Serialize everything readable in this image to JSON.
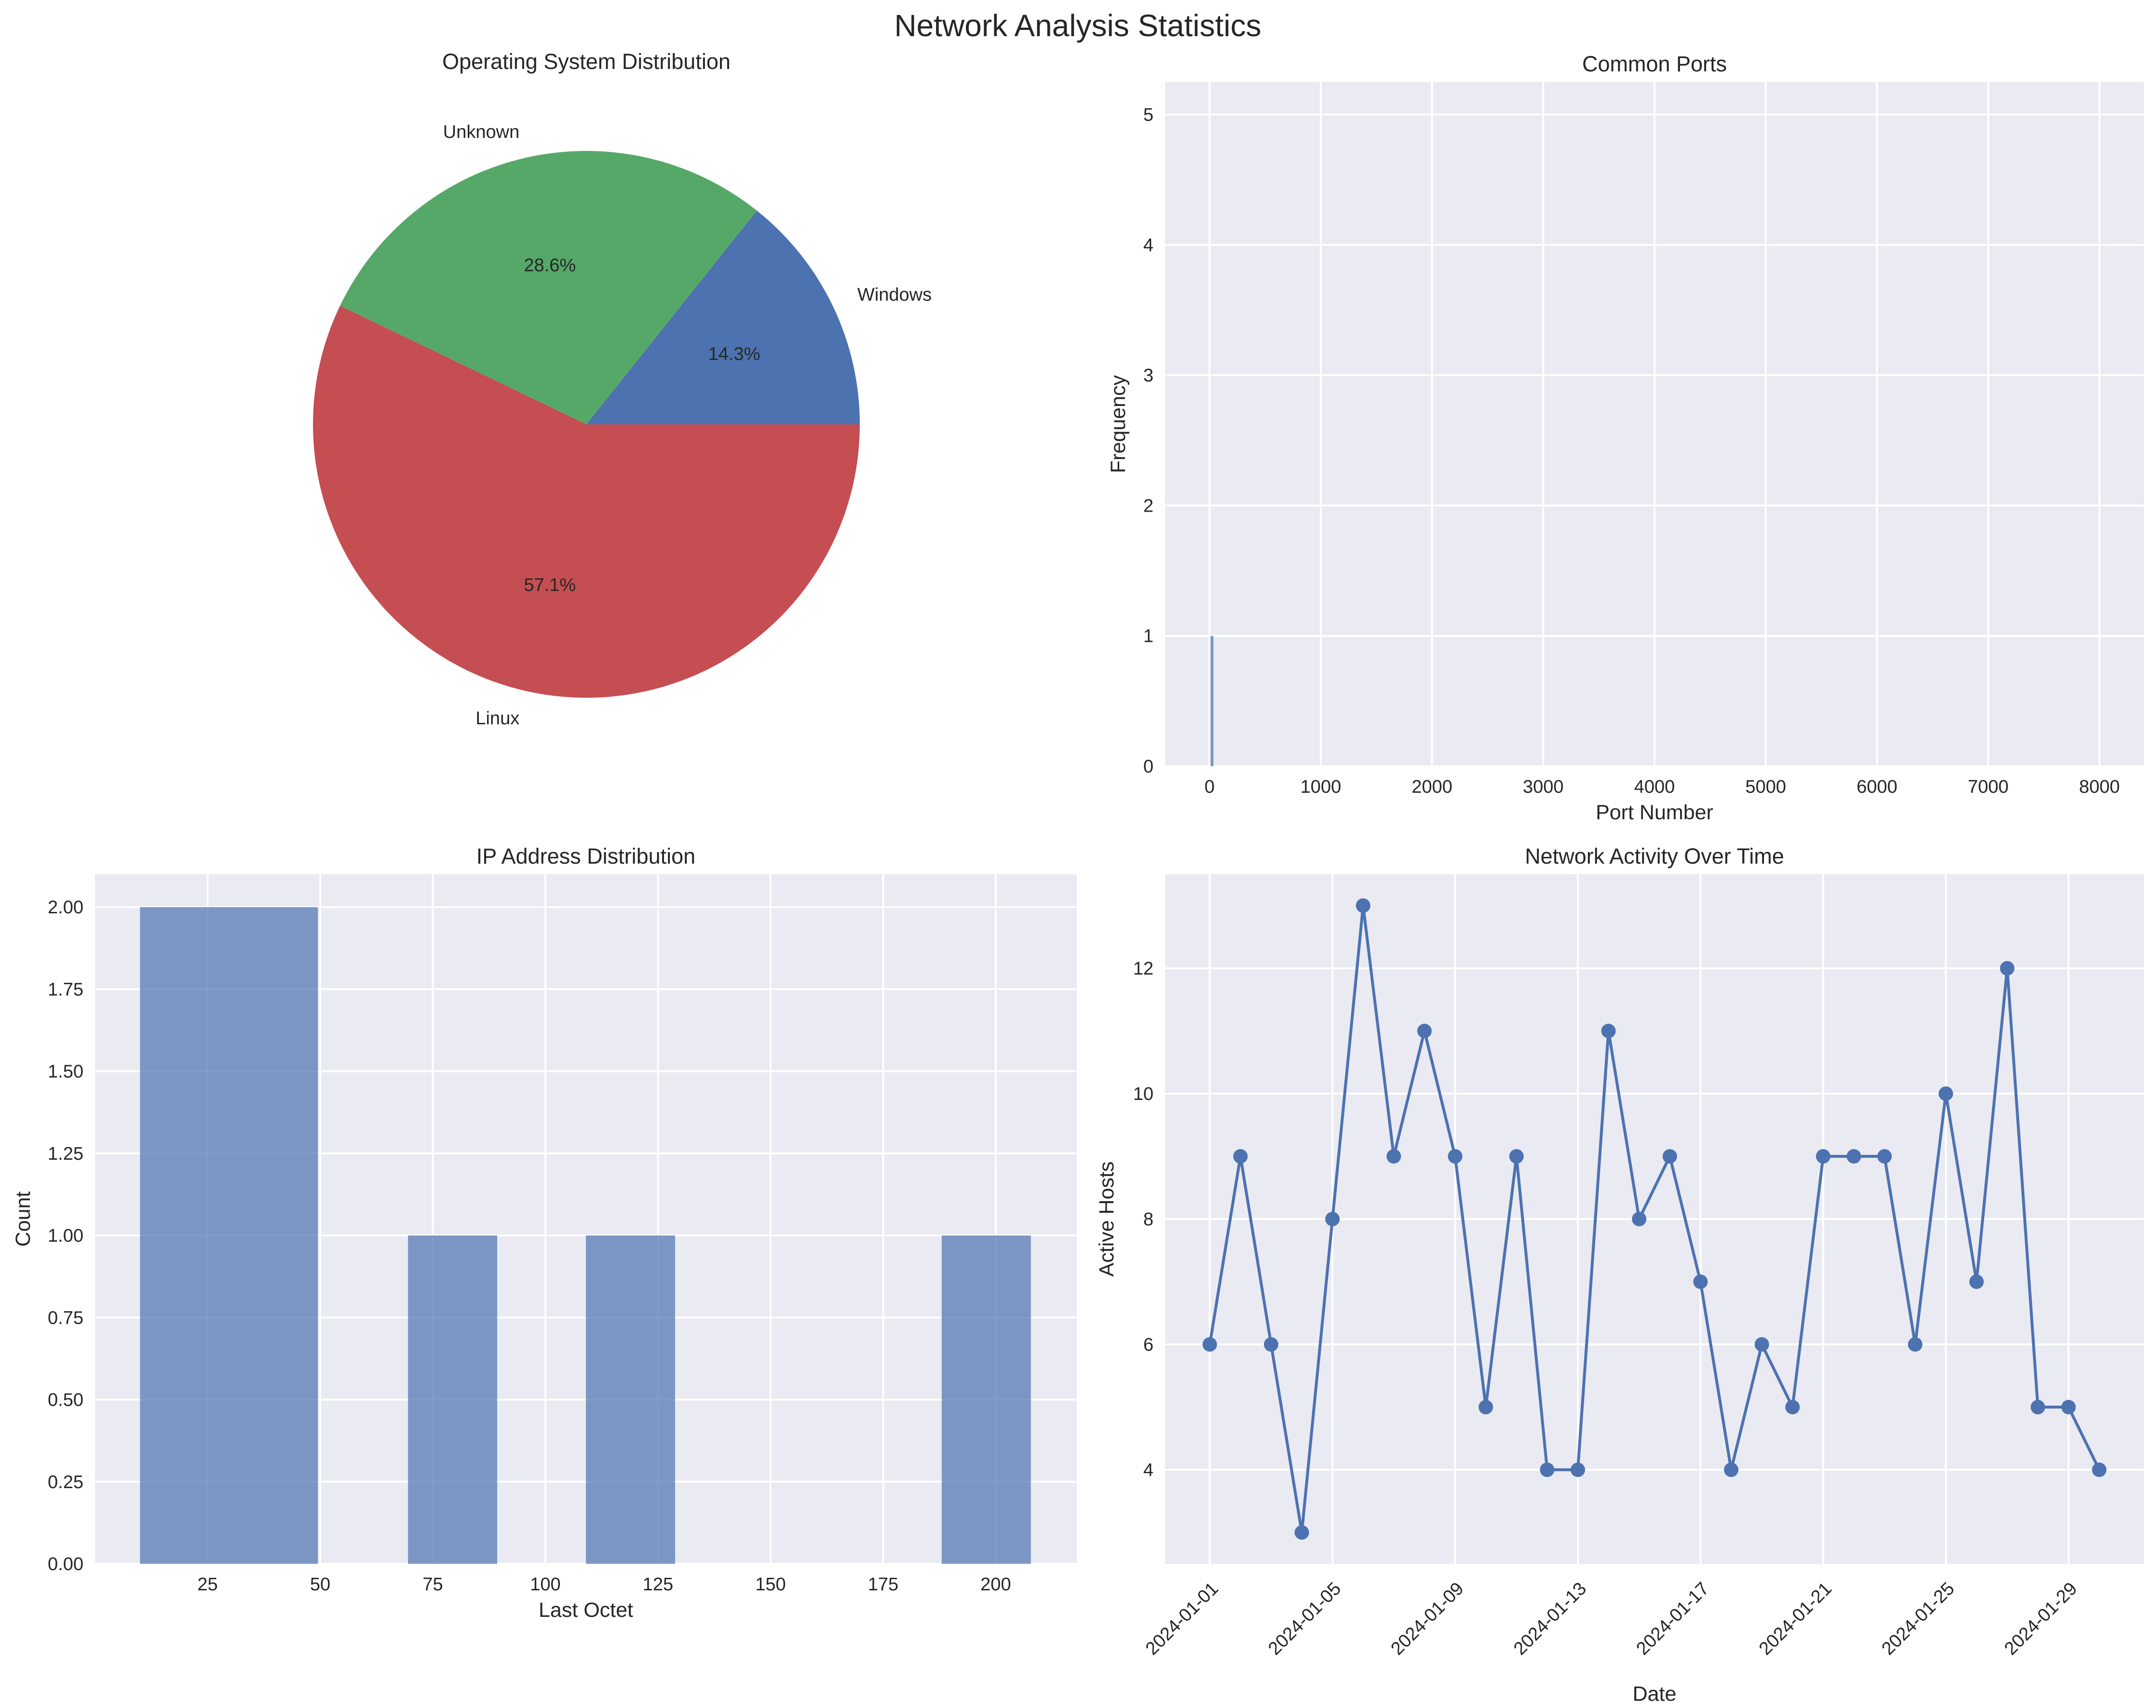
{
  "title": "Network Analysis Statistics",
  "colors": {
    "axes_face": "#EAEAF2",
    "grid": "#FFFFFF",
    "text": "#262626",
    "blue": "#4C72B0",
    "green": "#55A868",
    "red": "#C44E52"
  },
  "chart_data": [
    {
      "type": "pie",
      "title": "Operating System Distribution",
      "labels": [
        "Windows",
        "Unknown",
        "Linux"
      ],
      "values": [
        1,
        2,
        4
      ],
      "percent_labels": [
        "14.3%",
        "28.6%",
        "57.1%"
      ],
      "colors": [
        "#4C72B0",
        "#55A868",
        "#C44E52"
      ],
      "start_angle_deg": 0,
      "direction": "counterclockwise"
    },
    {
      "type": "bar",
      "title": "Common Ports",
      "xlabel": "Port Number",
      "ylabel": "Frequency",
      "bars": [
        {
          "x": 22,
          "value": 1
        }
      ],
      "xlim": [
        -400,
        8400
      ],
      "ylim": [
        0,
        5.25
      ],
      "xticks": [
        0,
        1000,
        2000,
        3000,
        4000,
        5000,
        6000,
        7000,
        8000
      ],
      "xtick_labels": [
        "0",
        "1000",
        "2000",
        "3000",
        "4000",
        "5000",
        "6000",
        "7000",
        "8000"
      ],
      "yticks": [
        0,
        1,
        2,
        3,
        4,
        5
      ],
      "ytick_labels": [
        "0",
        "1",
        "2",
        "3",
        "4",
        "5"
      ],
      "grid": true
    },
    {
      "type": "bar",
      "title": "IP Address Distribution",
      "xlabel": "Last Octet",
      "ylabel": "Count",
      "bins": [
        {
          "start": 10,
          "end": 49.5,
          "count": 2
        },
        {
          "start": 69.5,
          "end": 89.3,
          "count": 1
        },
        {
          "start": 109,
          "end": 128.8,
          "count": 1
        },
        {
          "start": 188,
          "end": 207.8,
          "count": 1
        }
      ],
      "xlim": [
        0,
        218
      ],
      "ylim": [
        0,
        2.1
      ],
      "xticks": [
        25,
        50,
        75,
        100,
        125,
        150,
        175,
        200
      ],
      "xtick_labels": [
        "25",
        "50",
        "75",
        "100",
        "125",
        "150",
        "175",
        "200"
      ],
      "yticks": [
        0,
        0.25,
        0.5,
        0.75,
        1.0,
        1.25,
        1.5,
        1.75,
        2.0
      ],
      "ytick_labels": [
        "0.00",
        "0.25",
        "0.50",
        "0.75",
        "1.00",
        "1.25",
        "1.50",
        "1.75",
        "2.00"
      ],
      "grid": true
    },
    {
      "type": "line",
      "title": "Network Activity Over Time",
      "xlabel": "Date",
      "ylabel": "Active Hosts",
      "x": [
        "2024-01-01",
        "2024-01-02",
        "2024-01-03",
        "2024-01-04",
        "2024-01-05",
        "2024-01-06",
        "2024-01-07",
        "2024-01-08",
        "2024-01-09",
        "2024-01-10",
        "2024-01-11",
        "2024-01-12",
        "2024-01-13",
        "2024-01-14",
        "2024-01-15",
        "2024-01-16",
        "2024-01-17",
        "2024-01-18",
        "2024-01-19",
        "2024-01-20",
        "2024-01-21",
        "2024-01-22",
        "2024-01-23",
        "2024-01-24",
        "2024-01-25",
        "2024-01-26",
        "2024-01-27",
        "2024-01-28",
        "2024-01-29",
        "2024-01-30"
      ],
      "values": [
        6,
        9,
        6,
        3,
        8,
        13,
        9,
        11,
        9,
        5,
        9,
        4,
        4,
        11,
        8,
        9,
        7,
        4,
        6,
        5,
        9,
        9,
        9,
        6,
        10,
        7,
        12,
        5,
        5,
        4
      ],
      "xlim": [
        "2023-12-30T13:00",
        "2024-01-31T11:00"
      ],
      "ylim": [
        2.5,
        13.5
      ],
      "xtick_labels": [
        "2024-01-01",
        "2024-01-05",
        "2024-01-09",
        "2024-01-13",
        "2024-01-17",
        "2024-01-21",
        "2024-01-25",
        "2024-01-29"
      ],
      "yticks": [
        4,
        6,
        8,
        10,
        12
      ],
      "ytick_labels": [
        "4",
        "6",
        "8",
        "10",
        "12"
      ],
      "marker": "circle",
      "grid": true
    }
  ]
}
